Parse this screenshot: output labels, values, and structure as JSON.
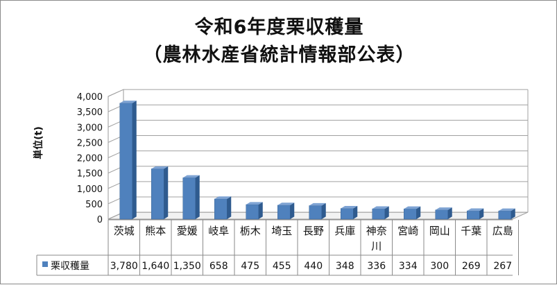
{
  "chart_data": {
    "type": "bar",
    "title_line1": "令和6年度栗収穫量",
    "title_line2": "（農林水産省統計情報部公表）",
    "ylabel": "単位(t)",
    "ylim": [
      0,
      4000
    ],
    "yticks": [
      "0",
      "500",
      "1,000",
      "1,500",
      "2,000",
      "2,500",
      "3,000",
      "3,500",
      "4,000"
    ],
    "categories": [
      "茨城",
      "熊本",
      "愛媛",
      "岐阜",
      "栃木",
      "埼玉",
      "長野",
      "兵庫",
      "神奈川",
      "宮崎",
      "岡山",
      "千葉",
      "広島"
    ],
    "series": [
      {
        "name": "栗収穫量",
        "values": [
          3780,
          1640,
          1350,
          658,
          475,
          455,
          440,
          348,
          336,
          334,
          300,
          269,
          267
        ],
        "labels": [
          "3,780",
          "1,640",
          "1,350",
          "658",
          "475",
          "455",
          "440",
          "348",
          "336",
          "334",
          "300",
          "269",
          "267"
        ]
      }
    ],
    "grid": true,
    "legend": "data-table",
    "bar_color": "#4f81bd"
  }
}
